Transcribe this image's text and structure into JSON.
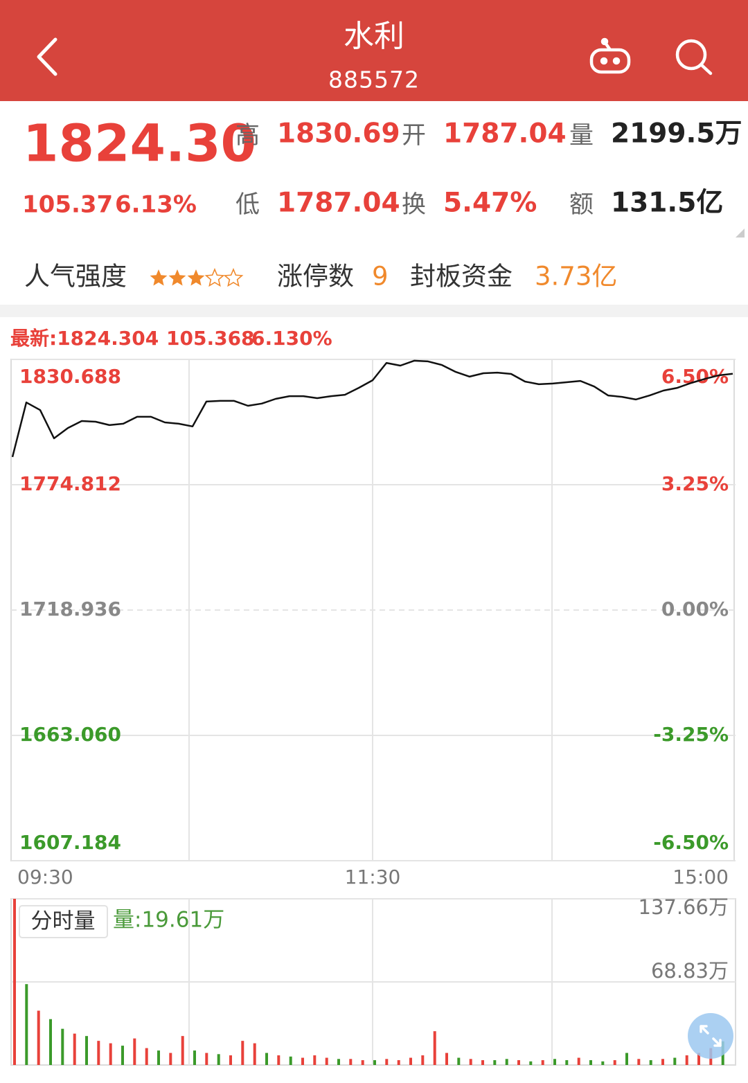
{
  "header": {
    "title": "水利",
    "code": "885572"
  },
  "quote": {
    "price": "1824.30",
    "change": "105.37",
    "change_pct": "6.13%",
    "stats": [
      {
        "label": "高",
        "value": "1830.69"
      },
      {
        "label": "开",
        "value": "1787.04"
      },
      {
        "label": "量",
        "value": "2199.5万"
      },
      {
        "label": "低",
        "value": "1787.04"
      },
      {
        "label": "换",
        "value": "5.47%"
      },
      {
        "label": "额",
        "value": "131.5亿"
      }
    ]
  },
  "popularity": {
    "label": "人气强度",
    "stars": 3,
    "stars_max": 5,
    "limit_label": "涨停数",
    "limit_count": "9",
    "seal_label": "封板资金",
    "seal_value": "3.73亿"
  },
  "chart_data": [
    {
      "type": "line",
      "readout": [
        "最新:1824.304",
        "105.368",
        "6.130%"
      ],
      "x_labels": [
        "09:30",
        "11:30",
        "15:00"
      ],
      "ylim": [
        1607.184,
        1830.688
      ],
      "yticks": [
        1607.184,
        {
          "value": 1663.06,
          "label": "1663.060"
        },
        1718.936,
        1774.812,
        1830.688
      ],
      "y2lim": [
        -6.5,
        6.5
      ],
      "y2ticks": [
        {
          "value": -6.5,
          "label": "-6.50%"
        },
        {
          "value": -3.25,
          "label": "-3.25%"
        },
        {
          "value": 0,
          "label": "0.00%"
        },
        {
          "value": 3.25,
          "label": "3.25%"
        },
        {
          "value": 6.5,
          "label": "6.50%"
        }
      ],
      "grid": true,
      "series": [
        {
          "color": "#111111",
          "values": [
            1787.2,
            1811.5,
            1808.1,
            1795.5,
            1800.1,
            1803.2,
            1802.9,
            1801.4,
            1802.0,
            1805.1,
            1805.1,
            1802.6,
            1802.0,
            1800.8,
            1811.9,
            1812.2,
            1812.2,
            1810.0,
            1811.0,
            1813.1,
            1814.3,
            1814.3,
            1813.4,
            1814.3,
            1814.9,
            1818.0,
            1821.4,
            1829.1,
            1827.9,
            1830.1,
            1829.8,
            1828.2,
            1825.1,
            1823.0,
            1824.5,
            1824.8,
            1824.2,
            1820.8,
            1819.6,
            1819.9,
            1820.5,
            1821.1,
            1818.6,
            1814.6,
            1814.0,
            1812.8,
            1814.6,
            1816.8,
            1818.0,
            1820.2,
            1822.0,
            1823.6,
            1824.3
          ]
        }
      ]
    },
    {
      "type": "bar",
      "title": "分时量",
      "readout": "量:19.61万",
      "ylim": [
        0,
        137.66
      ],
      "yticks": [
        {
          "value": 68.83,
          "label": "68.83万"
        },
        {
          "value": 137.66,
          "label": "137.66万"
        }
      ],
      "grid": true,
      "values": [
        137.66,
        67,
        45,
        38,
        30,
        26,
        24,
        20,
        18,
        16,
        22,
        14,
        12,
        10,
        24,
        12,
        10,
        9,
        8,
        20,
        18,
        10,
        8,
        7,
        6,
        8,
        6,
        5,
        5,
        4,
        4,
        5,
        4,
        6,
        8,
        28,
        10,
        6,
        5,
        4,
        4,
        5,
        4,
        3,
        4,
        5,
        4,
        6,
        4,
        3,
        4,
        10,
        5,
        4,
        5,
        6,
        8,
        10,
        14,
        19.61
      ],
      "colors": [
        "#e8413a",
        "#3b9a2a",
        "#e8413a",
        "#3b9a2a",
        "#3b9a2a",
        "#e8413a",
        "#3b9a2a",
        "#e8413a",
        "#e8413a",
        "#3b9a2a",
        "#e8413a",
        "#e8413a",
        "#3b9a2a",
        "#e8413a",
        "#e8413a",
        "#3b9a2a",
        "#e8413a",
        "#3b9a2a",
        "#e8413a",
        "#e8413a",
        "#e8413a",
        "#3b9a2a",
        "#e8413a",
        "#3b9a2a",
        "#e8413a",
        "#e8413a",
        "#e8413a",
        "#3b9a2a",
        "#e8413a",
        "#e8413a",
        "#3b9a2a",
        "#e8413a",
        "#e8413a",
        "#e8413a",
        "#e8413a",
        "#e8413a",
        "#e8413a",
        "#3b9a2a",
        "#e8413a",
        "#e8413a",
        "#3b9a2a",
        "#3b9a2a",
        "#e8413a",
        "#3b9a2a",
        "#e8413a",
        "#3b9a2a",
        "#3b9a2a",
        "#e8413a",
        "#3b9a2a",
        "#3b9a2a",
        "#e8413a",
        "#3b9a2a",
        "#e8413a",
        "#3b9a2a",
        "#e8413a",
        "#3b9a2a",
        "#e8413a",
        "#e8413a",
        "#e8413a",
        "#3b9a2a"
      ]
    }
  ]
}
